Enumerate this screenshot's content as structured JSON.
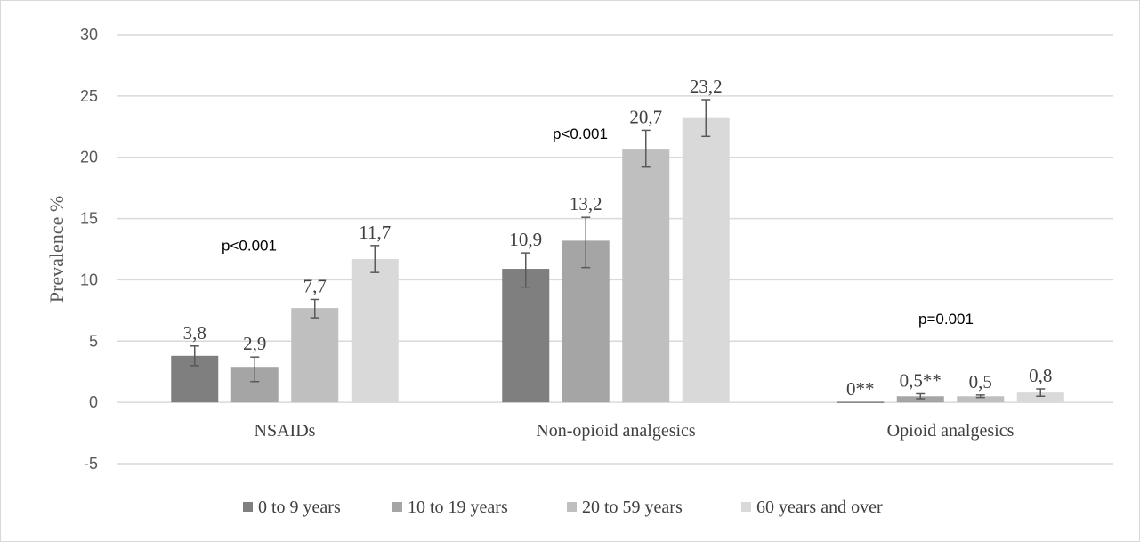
{
  "chart_data": {
    "type": "bar",
    "ylabel": "Prevalence  %",
    "ylim": [
      -5,
      30
    ],
    "yticks": [
      -5,
      0,
      5,
      10,
      15,
      20,
      25,
      30
    ],
    "categories": [
      "NSAIDs",
      "Non-opioid analgesics",
      "Opioid analgesics"
    ],
    "series": [
      {
        "name": "0 to 9 years",
        "color": "#7f7f7f",
        "values": [
          3.8,
          10.9,
          0
        ],
        "err_low": [
          3.0,
          9.4,
          0
        ],
        "err_high": [
          4.6,
          12.2,
          0
        ],
        "labels": [
          "3,8",
          "10,9",
          "0**"
        ]
      },
      {
        "name": "10 to 19 years",
        "color": "#a5a5a5",
        "values": [
          2.9,
          13.2,
          0.5
        ],
        "err_low": [
          1.7,
          11.0,
          0.3
        ],
        "err_high": [
          3.7,
          15.1,
          0.7
        ],
        "labels": [
          "2,9",
          "13,2",
          "0,5**"
        ]
      },
      {
        "name": "20 to 59 years",
        "color": "#bfbfbf",
        "values": [
          7.7,
          20.7,
          0.5
        ],
        "err_low": [
          6.9,
          19.2,
          0.4
        ],
        "err_high": [
          8.4,
          22.2,
          0.6
        ],
        "labels": [
          "7,7",
          "20,7",
          "0,5"
        ]
      },
      {
        "name": "60 years and over",
        "color": "#d9d9d9",
        "values": [
          11.7,
          23.2,
          0.8
        ],
        "err_low": [
          10.6,
          21.7,
          0.5
        ],
        "err_high": [
          12.8,
          24.7,
          1.1
        ],
        "labels": [
          "11,7",
          "23,2",
          "0,8"
        ]
      }
    ],
    "annotations": [
      {
        "text": "p<0.001",
        "category": 0,
        "y": 12.4
      },
      {
        "text": "p<0.001",
        "category": 1,
        "y": 21.5
      },
      {
        "text": "p=0.001",
        "category": 2,
        "y": 6.4
      }
    ],
    "grid": true,
    "legend_position": "bottom"
  }
}
